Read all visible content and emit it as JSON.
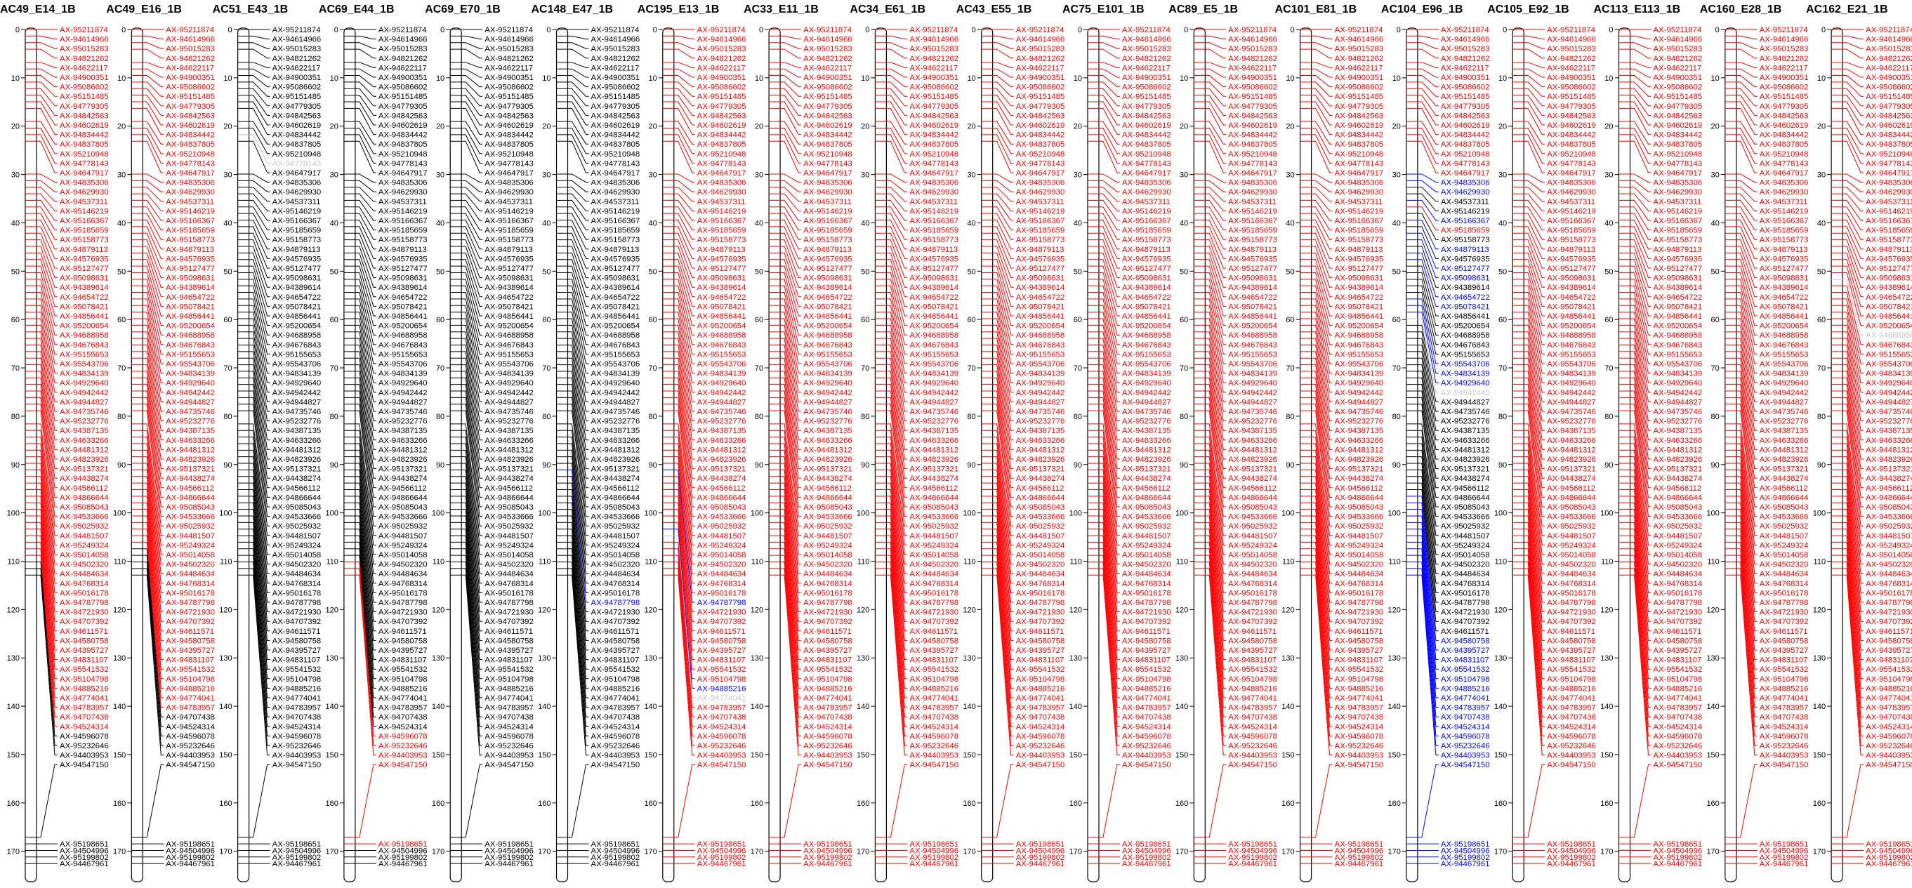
{
  "map": {
    "tick_step": 10,
    "tick_max": 170,
    "axis_max": 176,
    "colors": {
      "normal": "#000000",
      "distorted": "#ff0000",
      "segregating": "#0000ff",
      "missing": "#c8c8c8"
    },
    "markers": [
      {
        "name": "AX-95211874",
        "pos": 0.0
      },
      {
        "name": "AX-94614966",
        "pos": 1.36
      },
      {
        "name": "AX-95015283",
        "pos": 2.72
      },
      {
        "name": "AX-94821262",
        "pos": 4.08
      },
      {
        "name": "AX-94622117",
        "pos": 6.8
      },
      {
        "name": "AX-94900351",
        "pos": 8.16
      },
      {
        "name": "AX-95086602",
        "pos": 9.52
      },
      {
        "name": "AX-95151485",
        "pos": 10.88
      },
      {
        "name": "AX-94779305",
        "pos": 12.24
      },
      {
        "name": "AX-94842563",
        "pos": 13.6
      },
      {
        "name": "AX-94602619",
        "pos": 14.96
      },
      {
        "name": "AX-94834442",
        "pos": 16.32
      },
      {
        "name": "AX-94837805",
        "pos": 19.04
      },
      {
        "name": "AX-95210948",
        "pos": 20.4
      },
      {
        "name": "AX-94778143",
        "pos": 21.76
      },
      {
        "name": "AX-94647917",
        "pos": 23.12
      },
      {
        "name": "AX-94835306",
        "pos": 29.91
      },
      {
        "name": "AX-94629930",
        "pos": 31.27
      },
      {
        "name": "AX-94537311",
        "pos": 32.63
      },
      {
        "name": "AX-95146219",
        "pos": 33.99
      },
      {
        "name": "AX-95166367",
        "pos": 35.35
      },
      {
        "name": "AX-95185659",
        "pos": 36.71
      },
      {
        "name": "AX-95158773",
        "pos": 38.07
      },
      {
        "name": "AX-94879113",
        "pos": 39.43
      },
      {
        "name": "AX-94576935",
        "pos": 40.79
      },
      {
        "name": "AX-95127477",
        "pos": 42.15
      },
      {
        "name": "AX-95098631",
        "pos": 43.51
      },
      {
        "name": "AX-94389614",
        "pos": 44.87
      },
      {
        "name": "AX-94654722",
        "pos": 46.23
      },
      {
        "name": "AX-95078421",
        "pos": 47.59
      },
      {
        "name": "AX-94856441",
        "pos": 48.95
      },
      {
        "name": "AX-95200654",
        "pos": 50.31
      },
      {
        "name": "AX-94688958",
        "pos": 51.67
      },
      {
        "name": "AX-94676843",
        "pos": 53.03
      },
      {
        "name": "AX-95155653",
        "pos": 54.39
      },
      {
        "name": "AX-95543706",
        "pos": 55.75
      },
      {
        "name": "AX-94834139",
        "pos": 57.11
      },
      {
        "name": "AX-94929640",
        "pos": 58.47
      },
      {
        "name": "AX-94942442",
        "pos": 59.83
      },
      {
        "name": "AX-94944827",
        "pos": 61.19
      },
      {
        "name": "AX-94735746",
        "pos": 62.55
      },
      {
        "name": "AX-95232776",
        "pos": 63.91
      },
      {
        "name": "AX-94387135",
        "pos": 65.27
      },
      {
        "name": "AX-94633266",
        "pos": 66.63
      },
      {
        "name": "AX-94481312",
        "pos": 67.99
      },
      {
        "name": "AX-94823926",
        "pos": 69.35
      },
      {
        "name": "AX-95137321",
        "pos": 70.71
      },
      {
        "name": "AX-94438274",
        "pos": 72.07
      },
      {
        "name": "AX-94566112",
        "pos": 73.43
      },
      {
        "name": "AX-94866644",
        "pos": 74.79
      },
      {
        "name": "AX-95085043",
        "pos": 76.15
      },
      {
        "name": "AX-94533666",
        "pos": 77.51
      },
      {
        "name": "AX-95025932",
        "pos": 78.87
      },
      {
        "name": "AX-94481507",
        "pos": 81.59
      },
      {
        "name": "AX-95249324",
        "pos": 82.95
      },
      {
        "name": "AX-95014058",
        "pos": 84.31
      },
      {
        "name": "AX-94502320",
        "pos": 85.67
      },
      {
        "name": "AX-94484634",
        "pos": 87.03
      },
      {
        "name": "AX-94768314",
        "pos": 88.39
      },
      {
        "name": "AX-95016178",
        "pos": 89.75
      },
      {
        "name": "AX-94787798",
        "pos": 91.11
      },
      {
        "name": "AX-94721930",
        "pos": 92.47
      },
      {
        "name": "AX-94707392",
        "pos": 93.83
      },
      {
        "name": "AX-94611571",
        "pos": 95.19
      },
      {
        "name": "AX-94580758",
        "pos": 96.55
      },
      {
        "name": "AX-94395727",
        "pos": 97.91
      },
      {
        "name": "AX-94831107",
        "pos": 99.27
      },
      {
        "name": "AX-95541532",
        "pos": 100.63
      },
      {
        "name": "AX-95104798",
        "pos": 101.99
      },
      {
        "name": "AX-94885216",
        "pos": 103.35
      },
      {
        "name": "AX-94774041",
        "pos": 104.71
      },
      {
        "name": "AX-94783957",
        "pos": 106.07
      },
      {
        "name": "AX-94707438",
        "pos": 107.43
      },
      {
        "name": "AX-94524314",
        "pos": 108.79
      },
      {
        "name": "AX-94596078",
        "pos": 110.15
      },
      {
        "name": "AX-95232646",
        "pos": 111.51
      },
      {
        "name": "AX-94403953",
        "pos": 112.87
      },
      {
        "name": "AX-94547150",
        "pos": 167.1
      },
      {
        "name": "AX-95198651",
        "pos": 168.46
      },
      {
        "name": "AX-94504996",
        "pos": 169.82
      },
      {
        "name": "AX-95199802",
        "pos": 171.18
      },
      {
        "name": "AX-94467961",
        "pos": 172.54
      }
    ],
    "chromosomes": [
      {
        "title": "AC49_E14_1B",
        "colors": "RRRRRRRRRRRRRRRRRRRRRRRRRRRRRRRRRRRRRRRRRRRRRRRRRRRRRRRRRRRRRRRRRRRRRRRRRRKKKKKKKKKK"
      },
      {
        "title": "AC49_E16_1B",
        "colors": "RRRRRRRRRRRRRRRRRRRRRRRRRRRRRRRRRRRRRRRRRRRRRRRRRRRRRRRRRRRRRRRRRRRRRRRRKKKKKKKKKKKK"
      },
      {
        "title": "AC51_E43_1B",
        "colors": "KKKKKKKKKKKKKKMKKKKKKKKKKKKKKKKKKKKKKKKKKKKKKKKKKKKKKKKKKKKKKKKKKKKKKKKKKKKKKKKKKKKK"
      },
      {
        "title": "AC69_E44_1B",
        "colors": "KKKKKKKKKKKKKKKKKKKKKKKKKKKKKKKKKKKKKKKKKKKKKKKKKKKKKKKKKKKKKKKKKKKKKKKKKKRRRRRKKKKK"
      },
      {
        "title": "AC69_E70_1B",
        "colors": "KKKKKKKKKKKKKKKKKKKKKKKKKKKKKKKKKKKKKKKKKKKKKKKKKKKKKKKKKKKKKKKKKKKKKKKKKKKKKKKKKKKK"
      },
      {
        "title": "AC148_E47_1B",
        "colors": "KKKKKKKKKKKKKKKKKKKKKKKKKKKKKKKKKKKKKKKKKKKKKKKKKKKKKKKKKKKKBKKKKKKKKKKKKKKKKKKKKKKK"
      },
      {
        "title": "AC195_E13_1B",
        "colors": "RRRRRRRRRRRRRRRRRRRRRRRRRRRRRRRRRRRRRRRRRRRRRRRRRRRRRRRRRRRRBRRRRRRRRBMRRRRRRRRRRRRR"
      },
      {
        "title": "AC33_E11_1B",
        "colors": "RRRRRRRRRRRRRRRRRRRRRRRRRRRRRRRRRRRRRRRRRRRRRRRRRRRRRRRRRRRRRRRRRRRRRRRRRRRRRRRRRRRR"
      },
      {
        "title": "AC34_E61_1B",
        "colors": "RRRRRRRRRRRRRRRRRRRRRRRRRRRRRRRRRRRRRRRRRRRRRRRRRRRRRRRRRRRRRRRRRRRRRRRRRRRRRRRRRRRR"
      },
      {
        "title": "AC43_E55_1B",
        "colors": "RRRRRRRRRRRRRRRRRRRRRRRRRRRRRRRRRRRRRRRRRRRRRRRRRRRRRRRRRRRRRRRRRRRRRRRRRRRRRRRRRRRR"
      },
      {
        "title": "AC75_E101_1B",
        "colors": "RRRRRRRRRRRRRRRRRRRRRRRRRRRRRRRRRRRRRRRRRRRRRRRRRRRRRRRRRRRRRRRRRRRRRRRRRRRRRRRRRRRR"
      },
      {
        "title": "AC89_E5_1B",
        "colors": "RRRRRRRRRRRRRRRRRRRRRRRRRRRRRRRRRRRRRRRRRRRRRRRRRRRRRRRRRRRRRRRRRRRRRRRRRRRRRRRRRRRR"
      },
      {
        "title": "AC101_E81_1B",
        "colors": "RRRRRRRRRRRRRRRRRRRRRRRRRRRRRRRRRRRRRRRRRRRRRRRRRRRRRRRRRRRRRRRRRRRRRRRRRRRRRRRRRRRR"
      },
      {
        "title": "AC104_E96_1B",
        "colors": "RRRRRRRRRRRRRRRRBBKKBRKBKBBKBBKKKKKBBBMKKKKKKKKKKKKKKKKKKKKKKKKKBBBBBBBBBBBBBBBBBBRRRR"
      },
      {
        "title": "AC105_E92_1B",
        "colors": "RRRRRRRRRRRRRRRRRRRRRRRRRRRRRRRRRRRRRRRRRRRRRRRRRRRRRRRRRRRRRRRRRRRRRRRRRRRRRRRRRRRR"
      },
      {
        "title": "AC113_E113_1B",
        "colors": "RRRRRRRRRRRRRRRRRRRRRRRRRRRRRRRRRRRRRRRRRRRRRRRRRRRRRRRRRRRRRRRRRRRRRRRRRRRRRRRRRRRR"
      },
      {
        "title": "AC160_E28_1B",
        "colors": "RRRRRRRRRRRRRRRRRRRRRRRRRRRRRRRRRRRRRRRRRRRRRRRRRRRRRRRRRRRRRRRRRRRRRRRRRRRRRRRRRRRR"
      },
      {
        "title": "AC162_E21_1B",
        "colors": "RRRRRRRRRRRRRRRRRRRRRRRRRRRRRRRRMRRRRRRRRRRRRRRRRRRRRRRRRRRRRRRRRRRRRRRRRRRRRRRRRRRR"
      }
    ]
  }
}
